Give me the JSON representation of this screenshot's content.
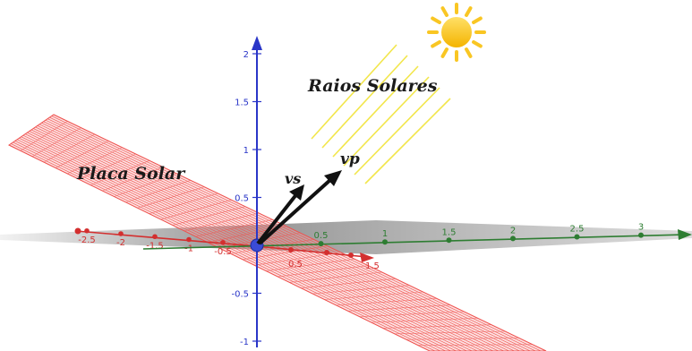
{
  "labels": {
    "solar_rays": "Raios Solares",
    "solar_panel": "Placa Solar",
    "vector_vs": "vs",
    "vector_vp": "vp"
  },
  "axes": {
    "z_ticks": [
      "2",
      "1.5",
      "1",
      "0.5",
      "-0.5",
      "-1"
    ],
    "x_ticks": [
      "0.5",
      "1",
      "1.5",
      "2",
      "2.5",
      "3"
    ],
    "y_ticks": [
      "-2.5",
      "-2",
      "-1.5",
      "-1",
      "-0.5"
    ],
    "y_near_origin": [
      "0.5",
      "1.5"
    ],
    "colors": {
      "z": "#2a36c8",
      "x": "#2e7d32",
      "y": "#d32f2f",
      "plane_grid": "#ef5350",
      "sun": "#f9c623",
      "ray": "#f2e64b"
    }
  },
  "icons": [
    "sun-icon"
  ]
}
